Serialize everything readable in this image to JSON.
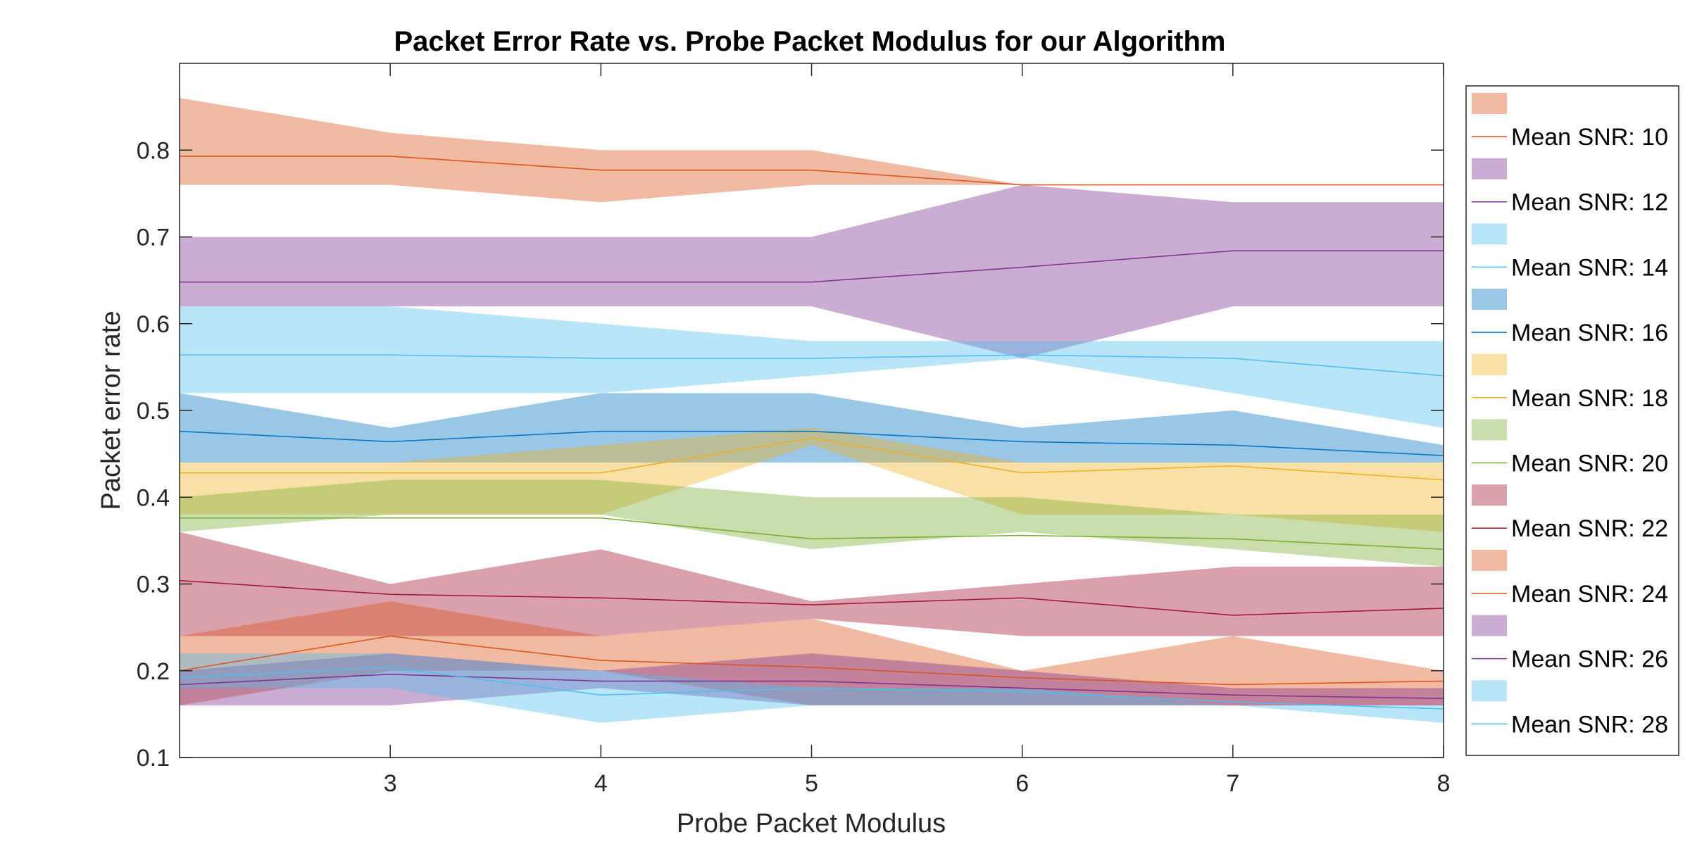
{
  "chart_data": {
    "type": "line",
    "title": "Packet Error Rate vs. Probe Packet Modulus for our Algorithm",
    "xlabel": "Probe Packet Modulus",
    "ylabel": "Packet error rate",
    "x": [
      2,
      3,
      4,
      5,
      6,
      7,
      8
    ],
    "xlim": [
      2,
      8
    ],
    "ylim": [
      0.1,
      0.9
    ],
    "x_ticks": [
      3,
      4,
      5,
      6,
      7,
      8
    ],
    "y_ticks": [
      0.1,
      0.2,
      0.3,
      0.4,
      0.5,
      0.6,
      0.7,
      0.8
    ],
    "grid": false,
    "legend_position": "outside-right",
    "band_opacity": 0.4,
    "series": [
      {
        "name": "Mean SNR: 10",
        "color": "#D95319",
        "mean": [
          0.793,
          0.793,
          0.777,
          0.777,
          0.76,
          0.76,
          0.76
        ],
        "lower": [
          0.76,
          0.76,
          0.74,
          0.76,
          0.76,
          0.76,
          0.76
        ],
        "upper": [
          0.86,
          0.82,
          0.8,
          0.8,
          0.76,
          0.76,
          0.76
        ]
      },
      {
        "name": "Mean SNR: 12",
        "color": "#7E2F8E",
        "mean": [
          0.648,
          0.648,
          0.648,
          0.648,
          0.665,
          0.684,
          0.684
        ],
        "lower": [
          0.62,
          0.62,
          0.62,
          0.62,
          0.56,
          0.62,
          0.62
        ],
        "upper": [
          0.7,
          0.7,
          0.7,
          0.7,
          0.76,
          0.74,
          0.74
        ]
      },
      {
        "name": "Mean SNR: 14",
        "color": "#4DBEEE",
        "mean": [
          0.564,
          0.564,
          0.56,
          0.56,
          0.564,
          0.56,
          0.54
        ],
        "lower": [
          0.52,
          0.52,
          0.52,
          0.54,
          0.56,
          0.52,
          0.48
        ],
        "upper": [
          0.62,
          0.62,
          0.6,
          0.58,
          0.58,
          0.58,
          0.58
        ]
      },
      {
        "name": "Mean SNR: 16",
        "color": "#0072BD",
        "mean": [
          0.476,
          0.464,
          0.476,
          0.476,
          0.464,
          0.46,
          0.448
        ],
        "lower": [
          0.44,
          0.44,
          0.44,
          0.44,
          0.44,
          0.44,
          0.44
        ],
        "upper": [
          0.52,
          0.48,
          0.52,
          0.52,
          0.48,
          0.5,
          0.46
        ]
      },
      {
        "name": "Mean SNR: 18",
        "color": "#EDB120",
        "mean": [
          0.428,
          0.428,
          0.428,
          0.468,
          0.428,
          0.436,
          0.42
        ],
        "lower": [
          0.38,
          0.38,
          0.38,
          0.46,
          0.38,
          0.38,
          0.36
        ],
        "upper": [
          0.44,
          0.44,
          0.46,
          0.48,
          0.44,
          0.44,
          0.44
        ]
      },
      {
        "name": "Mean SNR: 20",
        "color": "#77AC30",
        "mean": [
          0.376,
          0.376,
          0.376,
          0.352,
          0.356,
          0.352,
          0.34
        ],
        "lower": [
          0.36,
          0.38,
          0.38,
          0.34,
          0.36,
          0.34,
          0.32
        ],
        "upper": [
          0.4,
          0.42,
          0.42,
          0.4,
          0.4,
          0.38,
          0.38
        ]
      },
      {
        "name": "Mean SNR: 22",
        "color": "#A2142F",
        "mean": [
          0.304,
          0.288,
          0.284,
          0.276,
          0.284,
          0.264,
          0.272
        ],
        "lower": [
          0.24,
          0.24,
          0.24,
          0.26,
          0.24,
          0.24,
          0.24
        ],
        "upper": [
          0.36,
          0.3,
          0.34,
          0.28,
          0.3,
          0.32,
          0.32
        ]
      },
      {
        "name": "Mean SNR: 24",
        "color": "#D95319",
        "mean": [
          0.2,
          0.24,
          0.212,
          0.204,
          0.192,
          0.184,
          0.188
        ],
        "lower": [
          0.16,
          0.2,
          0.2,
          0.16,
          0.16,
          0.16,
          0.16
        ],
        "upper": [
          0.24,
          0.28,
          0.24,
          0.26,
          0.2,
          0.24,
          0.2
        ]
      },
      {
        "name": "Mean SNR: 26",
        "color": "#7E2F8E",
        "mean": [
          0.184,
          0.196,
          0.188,
          0.188,
          0.18,
          0.172,
          0.168
        ],
        "lower": [
          0.16,
          0.16,
          0.18,
          0.16,
          0.16,
          0.16,
          0.16
        ],
        "upper": [
          0.2,
          0.22,
          0.2,
          0.22,
          0.2,
          0.18,
          0.18
        ]
      },
      {
        "name": "Mean SNR: 28",
        "color": "#4DBEEE",
        "mean": [
          0.192,
          0.204,
          0.172,
          0.18,
          0.176,
          0.164,
          0.156
        ],
        "lower": [
          0.18,
          0.18,
          0.14,
          0.16,
          0.16,
          0.16,
          0.14
        ],
        "upper": [
          0.22,
          0.22,
          0.2,
          0.18,
          0.18,
          0.16,
          0.16
        ]
      }
    ]
  }
}
